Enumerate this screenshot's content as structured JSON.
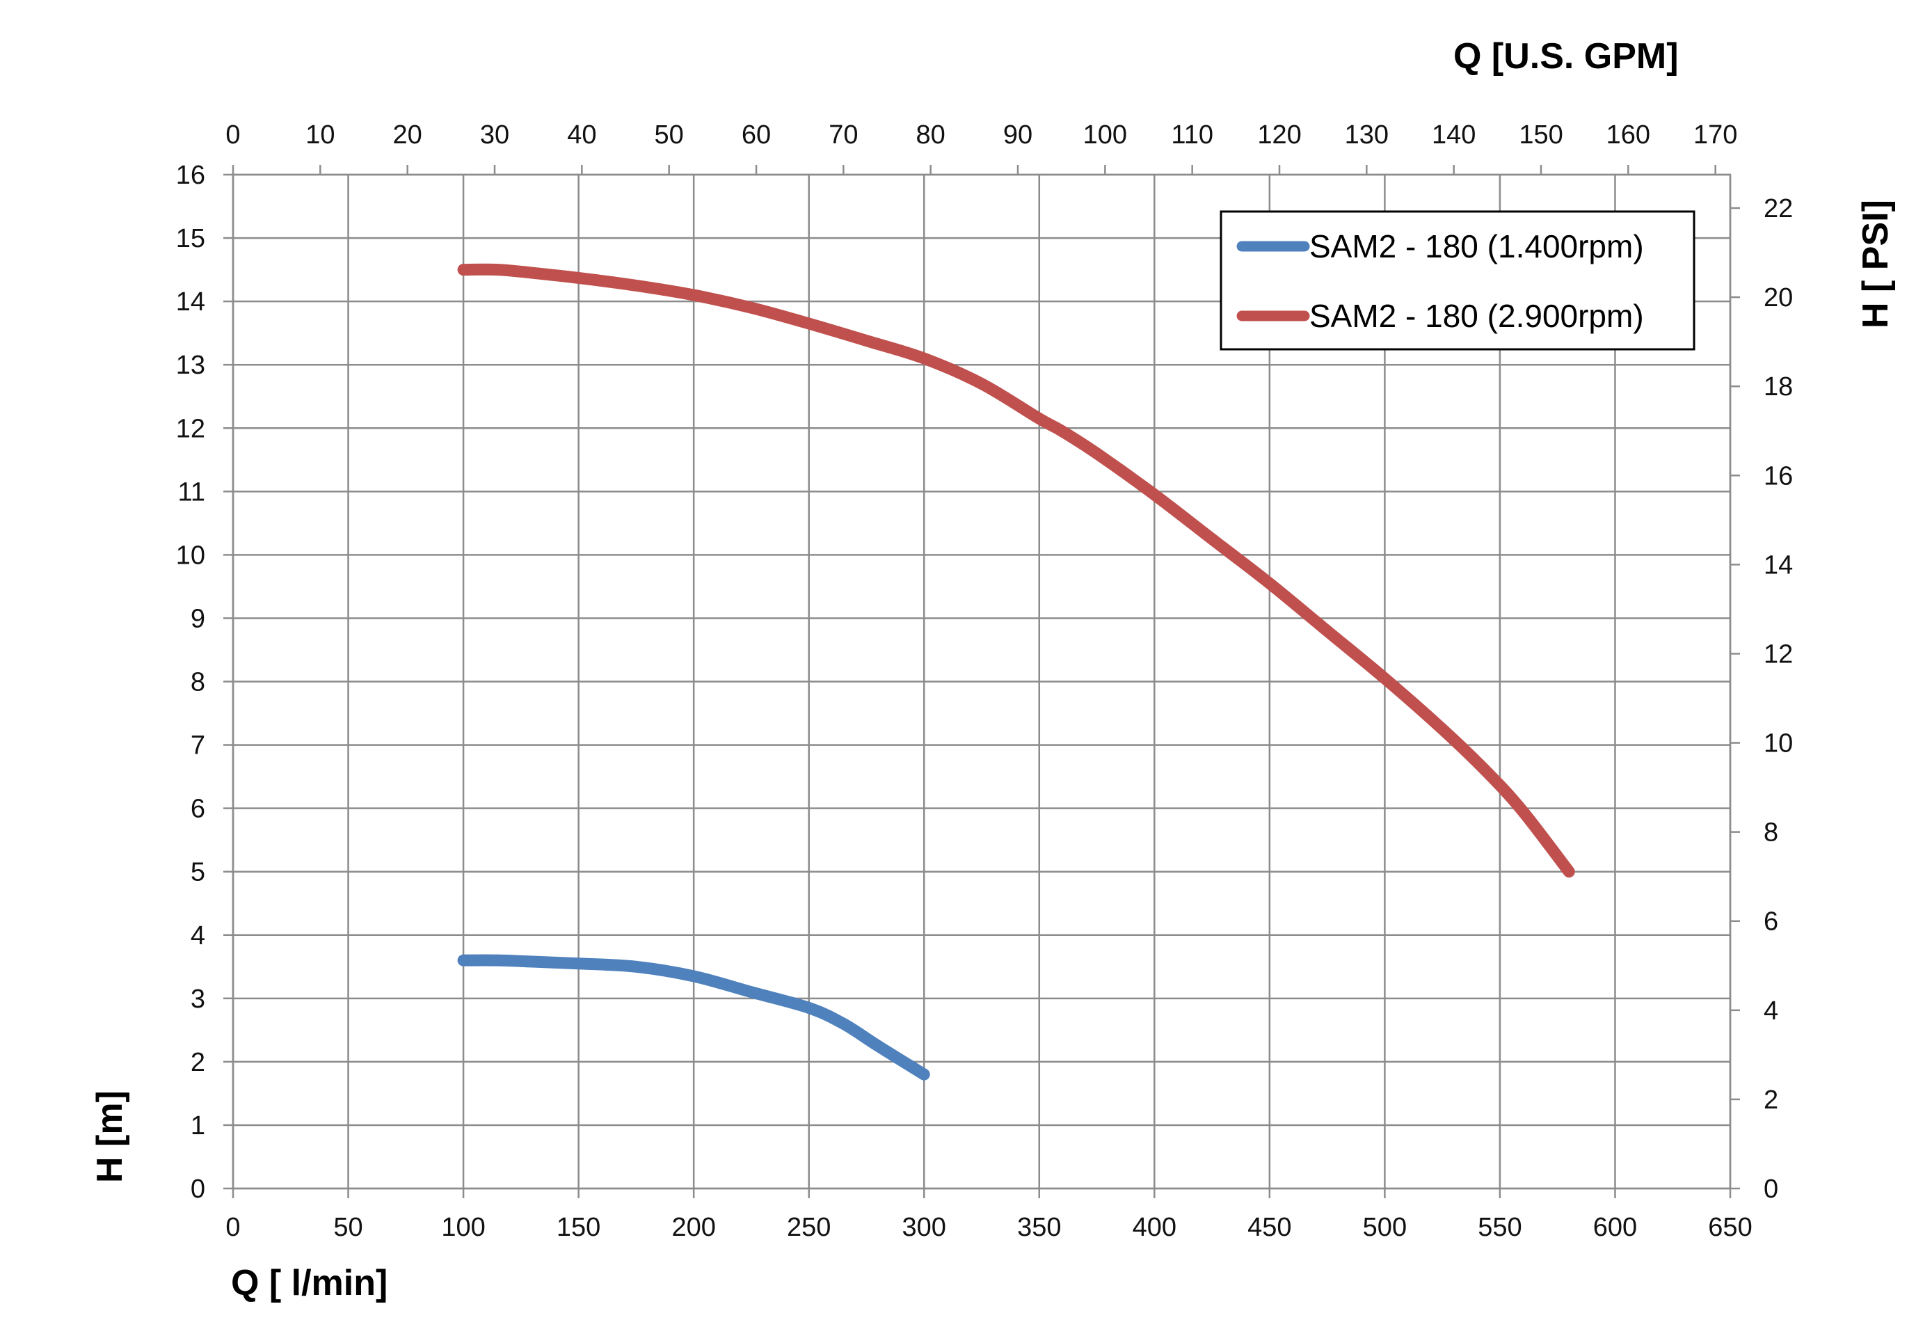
{
  "chart_data": {
    "type": "line",
    "x_axis_bottom": {
      "label": "Q [ l/min]",
      "range": [
        0,
        650
      ],
      "ticks": [
        0,
        50,
        100,
        150,
        200,
        250,
        300,
        350,
        400,
        450,
        500,
        550,
        600,
        650
      ]
    },
    "x_axis_top": {
      "label": "Q  [U.S. GPM]",
      "range": [
        0,
        171.7
      ],
      "ticks": [
        0,
        10,
        20,
        30,
        40,
        50,
        60,
        70,
        80,
        90,
        100,
        110,
        120,
        130,
        140,
        150,
        160,
        170
      ]
    },
    "y_axis_left": {
      "label": "H [m]",
      "range": [
        0,
        16
      ],
      "ticks": [
        0,
        1,
        2,
        3,
        4,
        5,
        6,
        7,
        8,
        9,
        10,
        11,
        12,
        13,
        14,
        15,
        16
      ]
    },
    "y_axis_right": {
      "label": "H [ PSI]",
      "range": [
        0,
        22.75
      ],
      "ticks": [
        0,
        2,
        4,
        6,
        8,
        10,
        12,
        14,
        16,
        18,
        20,
        22
      ]
    },
    "grid": true,
    "legend_position": "top-right",
    "series": [
      {
        "name": "SAM2 - 180 (1.400rpm)",
        "color": "#4f81bd",
        "x": [
          100,
          115,
          130,
          150,
          175,
          200,
          225,
          250,
          265,
          280,
          300
        ],
        "y": [
          3.6,
          3.6,
          3.58,
          3.55,
          3.5,
          3.35,
          3.1,
          2.85,
          2.6,
          2.25,
          1.8
        ]
      },
      {
        "name": "SAM2 - 180 (2.900rpm)",
        "color": "#c0504d",
        "x": [
          100,
          115,
          130,
          150,
          175,
          200,
          225,
          250,
          275,
          300,
          325,
          350,
          360,
          375,
          400,
          425,
          450,
          475,
          500,
          525,
          545,
          560,
          580
        ],
        "y": [
          14.5,
          14.5,
          14.45,
          14.37,
          14.25,
          14.1,
          13.9,
          13.65,
          13.38,
          13.1,
          12.7,
          12.15,
          11.95,
          11.6,
          10.95,
          10.25,
          9.55,
          8.8,
          8.05,
          7.25,
          6.55,
          5.95,
          5.0
        ]
      }
    ]
  }
}
